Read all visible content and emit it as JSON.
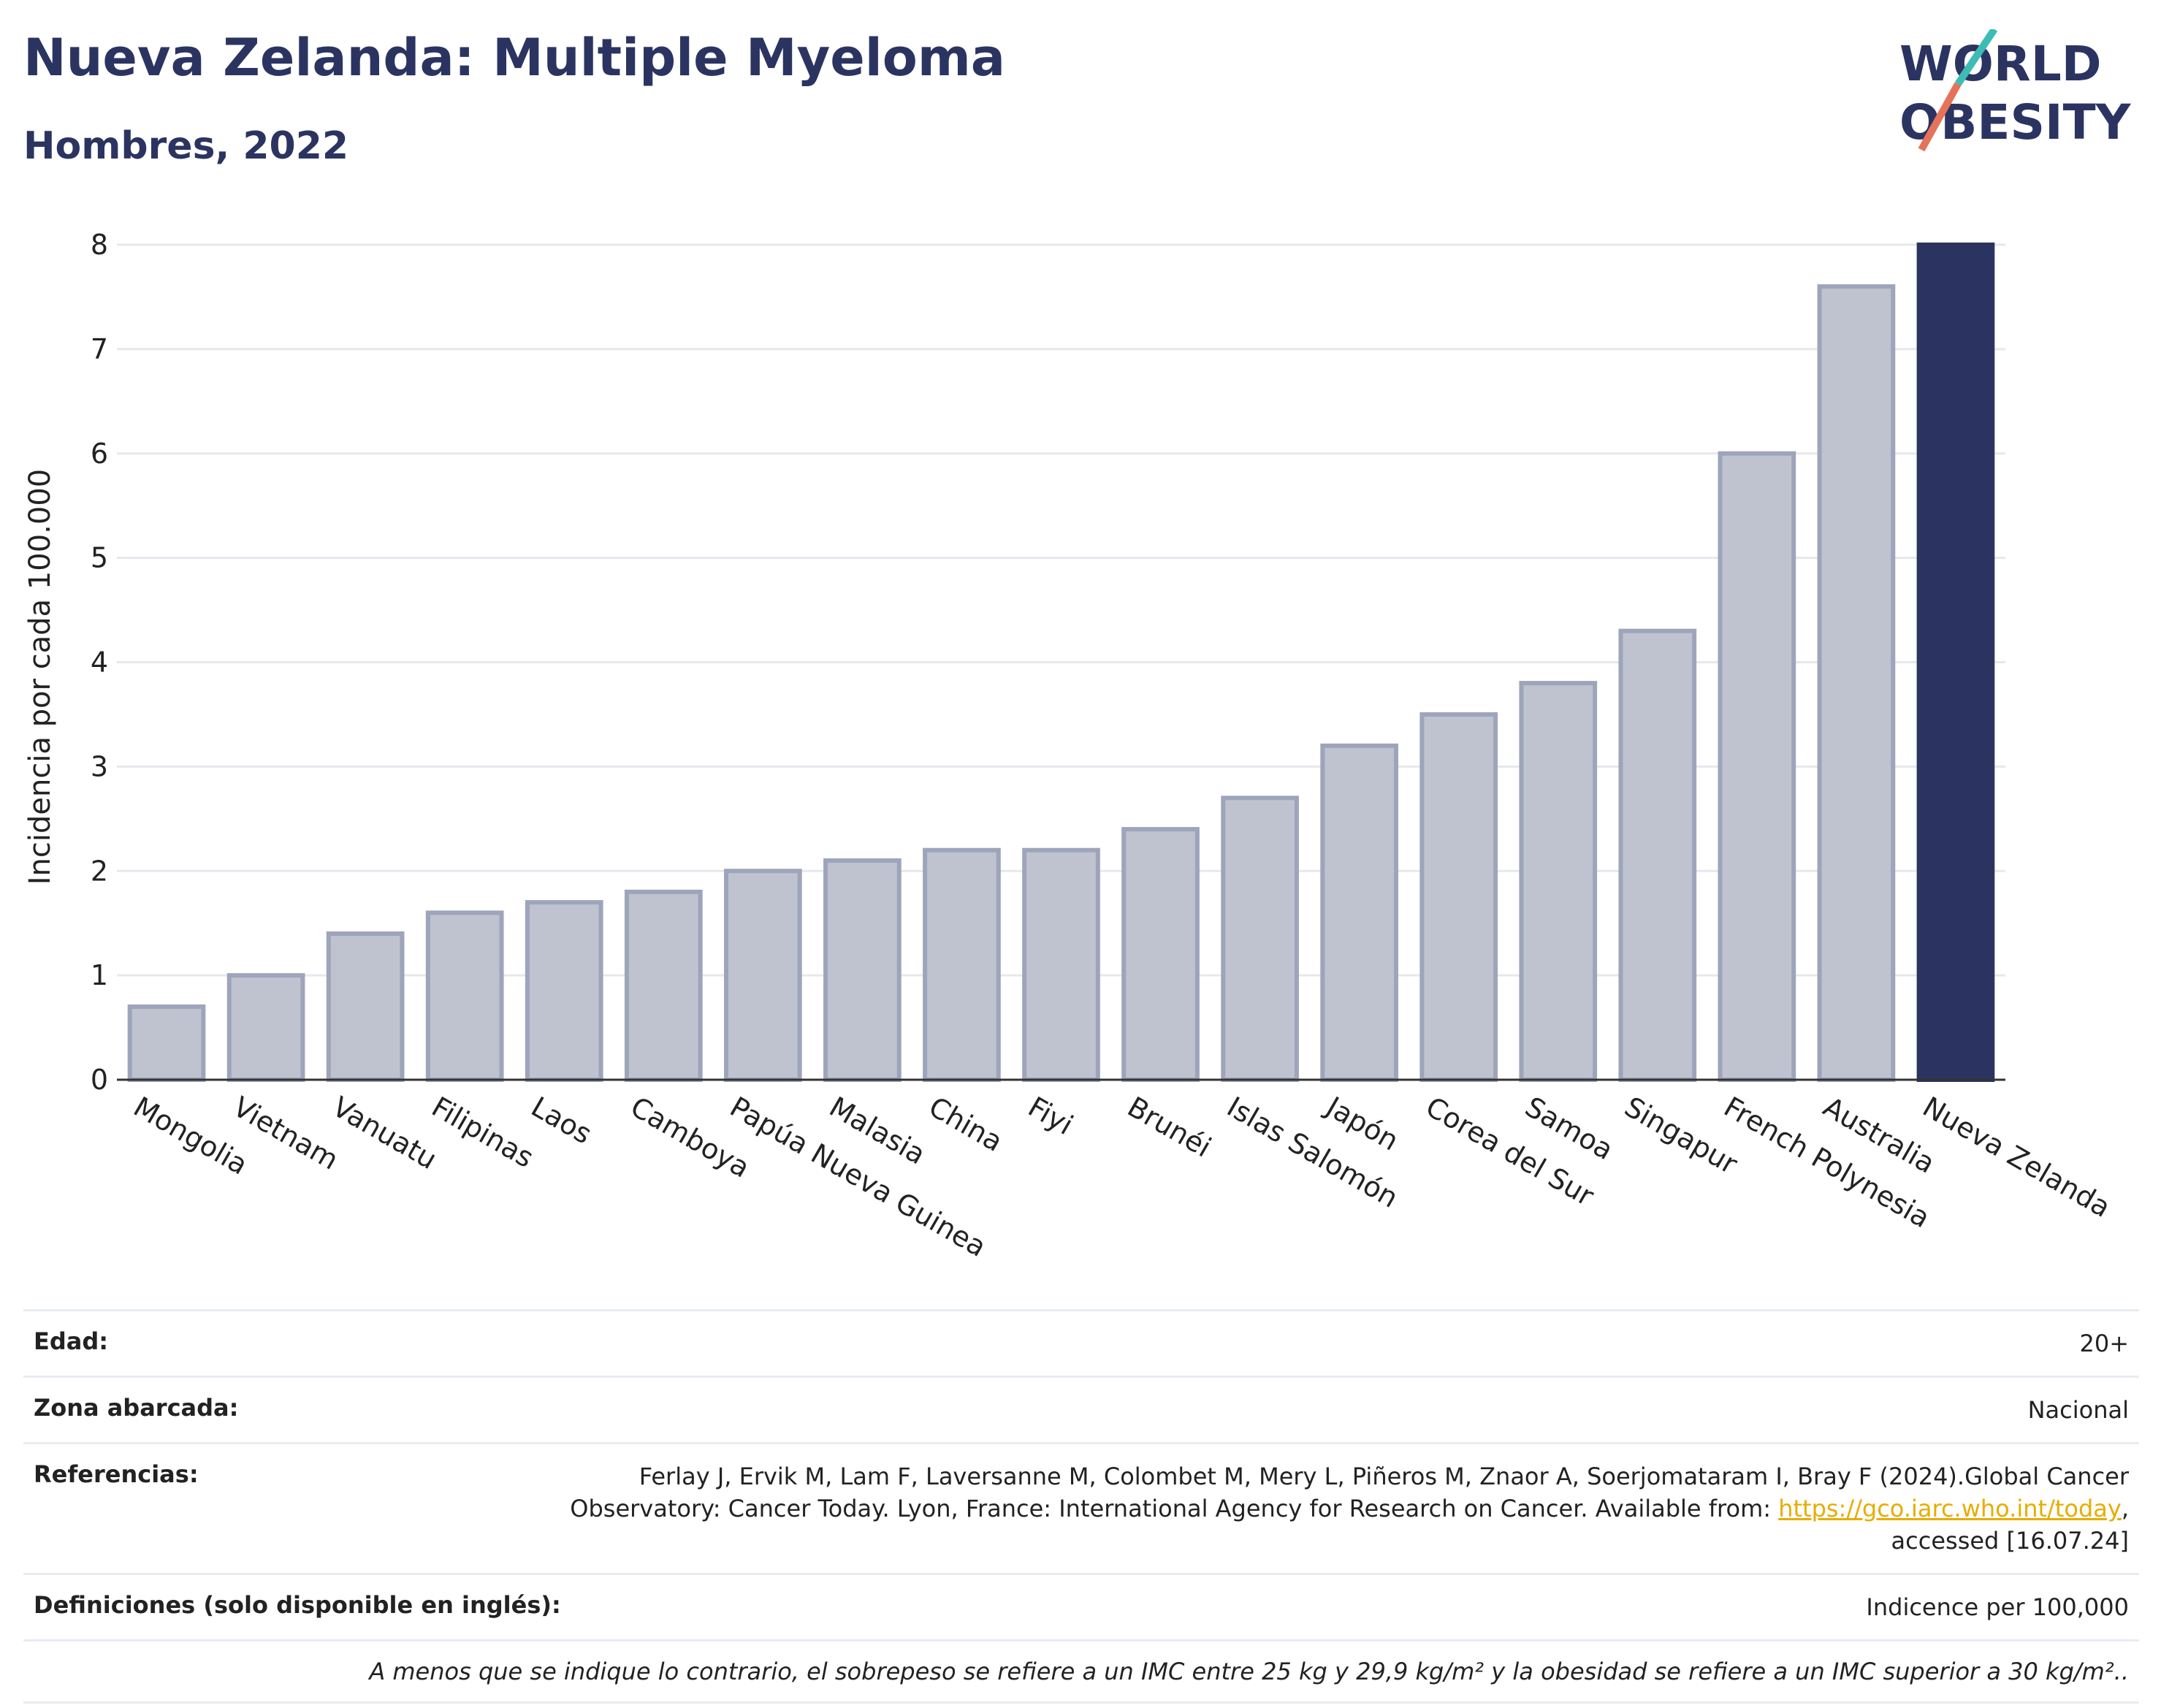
{
  "header": {
    "title": "Nueva Zelanda: Multiple Myeloma",
    "subtitle": "Hombres, 2022"
  },
  "logo": {
    "line1": "WORLD",
    "line2": "OBESITY"
  },
  "colors": {
    "highlight": "#2b3461",
    "bar_fill": "#bfc3d0",
    "bar_stroke": "#9ea4ba",
    "grid": "#e6e8ee",
    "link": "#e6ad00"
  },
  "chart_data": {
    "type": "bar",
    "ylabel": "Incidencia por cada 100.000",
    "ylim": [
      0,
      8
    ],
    "yticks": [
      0,
      1,
      2,
      3,
      4,
      5,
      6,
      7,
      8
    ],
    "grid": true,
    "highlight": "Nueva Zelanda",
    "categories": [
      "Mongolia",
      "Vietnam",
      "Vanuatu",
      "Filipinas",
      "Laos",
      "Camboya",
      "Papúa Nueva Guinea",
      "Malasia",
      "China",
      "Fiyi",
      "Brunéi",
      "Islas Salomón",
      "Japón",
      "Corea del Sur",
      "Samoa",
      "Singapur",
      "French Polynesia",
      "Australia",
      "Nueva Zelanda"
    ],
    "values": [
      0.7,
      1.0,
      1.4,
      1.6,
      1.7,
      1.8,
      2.0,
      2.1,
      2.2,
      2.2,
      2.4,
      2.7,
      3.2,
      3.5,
      3.8,
      4.3,
      6.0,
      7.6,
      8.0
    ]
  },
  "info": {
    "age_label": "Edad:",
    "age_value": "20+",
    "zone_label": "Zona abarcada:",
    "zone_value": "Nacional",
    "refs_label": "Referencias:",
    "refs_line1": "Ferlay J, Ervik M, Lam F, Laversanne M, Colombet M, Mery L, Piñeros M, Znaor A, Soerjomataram I, Bray F (2024).Global Cancer",
    "refs_line2": "Observatory: Cancer Today. Lyon, France: International Agency for Research on Cancer. Available from: ",
    "refs_link": "https://gco.iarc.who.int/today",
    "refs_line2_end": ",",
    "refs_line3": "accessed [16.07.24]",
    "defs_label": "Definiciones (solo disponible en inglés):",
    "defs_value": "Indicence per 100,000",
    "note": "A menos que se indique lo contrario, el sobrepeso se refiere a un IMC entre 25 kg y 29,9 kg/m² y la obesidad se refiere a un IMC superior a 30 kg/m².."
  }
}
